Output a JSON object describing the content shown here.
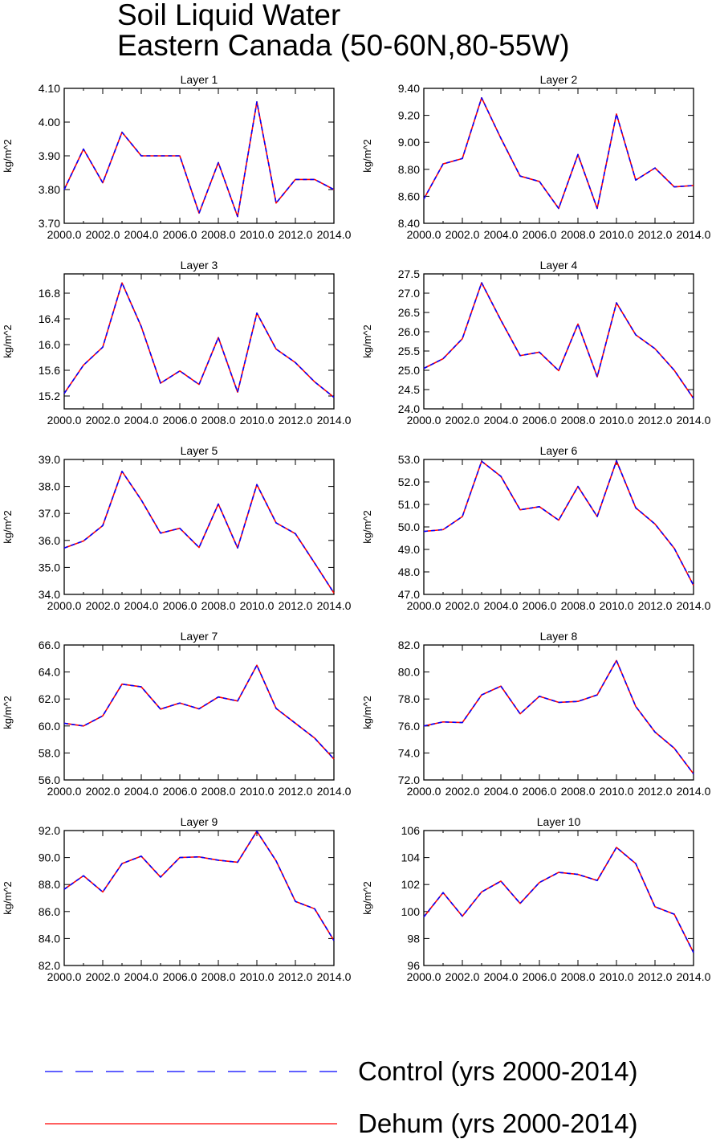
{
  "title": {
    "line1": "Soil Liquid Water",
    "line2": "Eastern Canada (50-60N,80-55W)"
  },
  "colors": {
    "control": "#0000ff",
    "dehum": "#ff0000",
    "axis": "#000000"
  },
  "legend": [
    {
      "label": "Control (yrs 2000-2014)",
      "style": "dashed",
      "color": "#0000ff"
    },
    {
      "label": "Dehum (yrs 2000-2014)",
      "style": "solid",
      "color": "#ff0000"
    }
  ],
  "chart_data": [
    {
      "type": "line",
      "title": "Layer 1",
      "ylabel": "kg/m^2",
      "xlabel": "",
      "x": [
        2000,
        2001,
        2002,
        2003,
        2004,
        2005,
        2006,
        2007,
        2008,
        2009,
        2010,
        2011,
        2012,
        2013,
        2014
      ],
      "xticks": [
        "2000.0",
        "2002.0",
        "2004.0",
        "2006.0",
        "2008.0",
        "2010.0",
        "2012.0",
        "2014.0"
      ],
      "ylim": [
        3.7,
        4.1
      ],
      "yticks": [
        "3.70",
        "3.80",
        "3.90",
        "4.00",
        "4.10"
      ],
      "series": [
        {
          "name": "Control (yrs 2000-2014)",
          "values": [
            3.8,
            3.92,
            3.82,
            3.97,
            3.9,
            3.9,
            3.9,
            3.73,
            3.88,
            3.72,
            4.06,
            3.76,
            3.83,
            3.83,
            3.8
          ]
        },
        {
          "name": "Dehum (yrs 2000-2014)",
          "values": [
            3.8,
            3.92,
            3.82,
            3.97,
            3.9,
            3.9,
            3.9,
            3.73,
            3.88,
            3.72,
            4.06,
            3.76,
            3.83,
            3.83,
            3.8
          ]
        }
      ]
    },
    {
      "type": "line",
      "title": "Layer 2",
      "ylabel": "kg/m^2",
      "xlabel": "",
      "x": [
        2000,
        2001,
        2002,
        2003,
        2004,
        2005,
        2006,
        2007,
        2008,
        2009,
        2010,
        2011,
        2012,
        2013,
        2014
      ],
      "xticks": [
        "2000.0",
        "2002.0",
        "2004.0",
        "2006.0",
        "2008.0",
        "2010.0",
        "2012.0",
        "2014.0"
      ],
      "ylim": [
        8.4,
        9.4
      ],
      "yticks": [
        "8.40",
        "8.60",
        "8.80",
        "9.00",
        "9.20",
        "9.40"
      ],
      "series": [
        {
          "name": "Control (yrs 2000-2014)",
          "values": [
            8.58,
            8.84,
            8.88,
            9.33,
            9.03,
            8.75,
            8.71,
            8.51,
            8.91,
            8.51,
            9.21,
            8.72,
            8.81,
            8.67,
            8.68
          ]
        },
        {
          "name": "Dehum (yrs 2000-2014)",
          "values": [
            8.58,
            8.84,
            8.88,
            9.33,
            9.03,
            8.75,
            8.71,
            8.51,
            8.91,
            8.51,
            9.21,
            8.72,
            8.81,
            8.67,
            8.68
          ]
        }
      ]
    },
    {
      "type": "line",
      "title": "Layer 3",
      "ylabel": "kg/m^2",
      "xlabel": "",
      "x": [
        2000,
        2001,
        2002,
        2003,
        2004,
        2005,
        2006,
        2007,
        2008,
        2009,
        2010,
        2011,
        2012,
        2013,
        2014
      ],
      "xticks": [
        "2000.0",
        "2002.0",
        "2004.0",
        "2006.0",
        "2008.0",
        "2010.0",
        "2012.0",
        "2014.0"
      ],
      "ylim": [
        15.0,
        17.1
      ],
      "yticks": [
        "15.2",
        "15.6",
        "16.0",
        "16.4",
        "16.8"
      ],
      "series": [
        {
          "name": "Control (yrs 2000-2014)",
          "values": [
            15.24,
            15.68,
            15.96,
            16.96,
            16.28,
            15.4,
            15.59,
            15.38,
            16.11,
            15.26,
            16.49,
            15.93,
            15.72,
            15.42,
            15.18
          ]
        },
        {
          "name": "Dehum (yrs 2000-2014)",
          "values": [
            15.24,
            15.68,
            15.96,
            16.96,
            16.28,
            15.4,
            15.59,
            15.38,
            16.11,
            15.26,
            16.49,
            15.93,
            15.72,
            15.42,
            15.18
          ]
        }
      ]
    },
    {
      "type": "line",
      "title": "Layer 4",
      "ylabel": "kg/m^2",
      "xlabel": "",
      "x": [
        2000,
        2001,
        2002,
        2003,
        2004,
        2005,
        2006,
        2007,
        2008,
        2009,
        2010,
        2011,
        2012,
        2013,
        2014
      ],
      "xticks": [
        "2000.0",
        "2002.0",
        "2004.0",
        "2006.0",
        "2008.0",
        "2010.0",
        "2012.0",
        "2014.0"
      ],
      "ylim": [
        24.0,
        27.5
      ],
      "yticks": [
        "24.0",
        "24.5",
        "25.0",
        "25.5",
        "26.0",
        "26.5",
        "27.0",
        "27.5"
      ],
      "series": [
        {
          "name": "Control (yrs 2000-2014)",
          "values": [
            25.05,
            25.3,
            25.82,
            27.27,
            26.3,
            25.38,
            25.47,
            24.99,
            26.2,
            24.83,
            26.75,
            25.92,
            25.56,
            25.0,
            24.27
          ]
        },
        {
          "name": "Dehum (yrs 2000-2014)",
          "values": [
            25.05,
            25.3,
            25.82,
            27.27,
            26.3,
            25.38,
            25.47,
            24.99,
            26.2,
            24.83,
            26.75,
            25.92,
            25.56,
            25.0,
            24.27
          ]
        }
      ]
    },
    {
      "type": "line",
      "title": "Layer 5",
      "ylabel": "kg/m^2",
      "xlabel": "",
      "x": [
        2000,
        2001,
        2002,
        2003,
        2004,
        2005,
        2006,
        2007,
        2008,
        2009,
        2010,
        2011,
        2012,
        2013,
        2014
      ],
      "xticks": [
        "2000.0",
        "2002.0",
        "2004.0",
        "2006.0",
        "2008.0",
        "2010.0",
        "2012.0",
        "2014.0"
      ],
      "ylim": [
        34.0,
        39.0
      ],
      "yticks": [
        "34.0",
        "35.0",
        "36.0",
        "37.0",
        "38.0",
        "39.0"
      ],
      "series": [
        {
          "name": "Control (yrs 2000-2014)",
          "values": [
            35.72,
            35.98,
            36.55,
            38.56,
            37.5,
            36.27,
            36.45,
            35.74,
            37.35,
            35.72,
            38.07,
            36.65,
            36.25,
            35.16,
            34.05
          ]
        },
        {
          "name": "Dehum (yrs 2000-2014)",
          "values": [
            35.72,
            35.98,
            36.55,
            38.56,
            37.5,
            36.27,
            36.45,
            35.74,
            37.35,
            35.72,
            38.07,
            36.65,
            36.25,
            35.16,
            34.05
          ]
        }
      ]
    },
    {
      "type": "line",
      "title": "Layer 6",
      "ylabel": "kg/m^2",
      "xlabel": "",
      "x": [
        2000,
        2001,
        2002,
        2003,
        2004,
        2005,
        2006,
        2007,
        2008,
        2009,
        2010,
        2011,
        2012,
        2013,
        2014
      ],
      "xticks": [
        "2000.0",
        "2002.0",
        "2004.0",
        "2006.0",
        "2008.0",
        "2010.0",
        "2012.0",
        "2014.0"
      ],
      "ylim": [
        47.0,
        53.0
      ],
      "yticks": [
        "47.0",
        "48.0",
        "49.0",
        "50.0",
        "51.0",
        "52.0",
        "53.0"
      ],
      "series": [
        {
          "name": "Control (yrs 2000-2014)",
          "values": [
            49.8,
            49.88,
            50.46,
            52.92,
            52.25,
            50.76,
            50.9,
            50.3,
            51.8,
            50.46,
            52.94,
            50.85,
            50.13,
            49.05,
            47.4
          ]
        },
        {
          "name": "Dehum (yrs 2000-2014)",
          "values": [
            49.8,
            49.88,
            50.46,
            52.92,
            52.25,
            50.76,
            50.9,
            50.3,
            51.8,
            50.46,
            52.94,
            50.85,
            50.13,
            49.05,
            47.4
          ]
        }
      ]
    },
    {
      "type": "line",
      "title": "Layer 7",
      "ylabel": "kg/m^2",
      "xlabel": "",
      "x": [
        2000,
        2001,
        2002,
        2003,
        2004,
        2005,
        2006,
        2007,
        2008,
        2009,
        2010,
        2011,
        2012,
        2013,
        2014
      ],
      "xticks": [
        "2000.0",
        "2002.0",
        "2004.0",
        "2006.0",
        "2008.0",
        "2010.0",
        "2012.0",
        "2014.0"
      ],
      "ylim": [
        56.0,
        66.0
      ],
      "yticks": [
        "56.0",
        "58.0",
        "60.0",
        "62.0",
        "64.0",
        "66.0"
      ],
      "series": [
        {
          "name": "Control (yrs 2000-2014)",
          "values": [
            60.2,
            60.0,
            60.75,
            63.1,
            62.9,
            61.25,
            61.7,
            61.27,
            62.15,
            61.85,
            64.5,
            61.3,
            60.2,
            59.1,
            57.55
          ]
        },
        {
          "name": "Dehum (yrs 2000-2014)",
          "values": [
            60.2,
            60.0,
            60.75,
            63.1,
            62.9,
            61.25,
            61.7,
            61.27,
            62.15,
            61.85,
            64.5,
            61.3,
            60.2,
            59.1,
            57.55
          ]
        }
      ]
    },
    {
      "type": "line",
      "title": "Layer 8",
      "ylabel": "kg/m^2",
      "xlabel": "",
      "x": [
        2000,
        2001,
        2002,
        2003,
        2004,
        2005,
        2006,
        2007,
        2008,
        2009,
        2010,
        2011,
        2012,
        2013,
        2014
      ],
      "xticks": [
        "2000.0",
        "2002.0",
        "2004.0",
        "2006.0",
        "2008.0",
        "2010.0",
        "2012.0",
        "2014.0"
      ],
      "ylim": [
        72.0,
        82.0
      ],
      "yticks": [
        "72.0",
        "74.0",
        "76.0",
        "78.0",
        "80.0",
        "82.0"
      ],
      "series": [
        {
          "name": "Control (yrs 2000-2014)",
          "values": [
            76.0,
            76.3,
            76.25,
            78.3,
            78.95,
            76.9,
            78.2,
            77.75,
            77.82,
            78.3,
            80.85,
            77.45,
            75.55,
            74.35,
            72.45
          ]
        },
        {
          "name": "Dehum (yrs 2000-2014)",
          "values": [
            76.0,
            76.3,
            76.25,
            78.3,
            78.95,
            76.9,
            78.2,
            77.75,
            77.82,
            78.3,
            80.85,
            77.45,
            75.55,
            74.35,
            72.45
          ]
        }
      ]
    },
    {
      "type": "line",
      "title": "Layer 9",
      "ylabel": "kg/m^2",
      "xlabel": "",
      "x": [
        2000,
        2001,
        2002,
        2003,
        2004,
        2005,
        2006,
        2007,
        2008,
        2009,
        2010,
        2011,
        2012,
        2013,
        2014
      ],
      "xticks": [
        "2000.0",
        "2002.0",
        "2004.0",
        "2006.0",
        "2008.0",
        "2010.0",
        "2012.0",
        "2014.0"
      ],
      "ylim": [
        82.0,
        92.0
      ],
      "yticks": [
        "82.0",
        "84.0",
        "86.0",
        "88.0",
        "90.0",
        "92.0"
      ],
      "series": [
        {
          "name": "Control (yrs 2000-2014)",
          "values": [
            87.65,
            88.65,
            87.45,
            89.55,
            90.1,
            88.55,
            90.0,
            90.05,
            89.8,
            89.65,
            91.95,
            89.75,
            86.75,
            86.2,
            83.85
          ]
        },
        {
          "name": "Dehum (yrs 2000-2014)",
          "values": [
            87.65,
            88.65,
            87.45,
            89.55,
            90.1,
            88.55,
            90.0,
            90.05,
            89.8,
            89.65,
            91.95,
            89.75,
            86.75,
            86.2,
            83.85
          ]
        }
      ]
    },
    {
      "type": "line",
      "title": "Layer 10",
      "ylabel": "kg/m^2",
      "xlabel": "",
      "x": [
        2000,
        2001,
        2002,
        2003,
        2004,
        2005,
        2006,
        2007,
        2008,
        2009,
        2010,
        2011,
        2012,
        2013,
        2014
      ],
      "xticks": [
        "2000.0",
        "2002.0",
        "2004.0",
        "2006.0",
        "2008.0",
        "2010.0",
        "2012.0",
        "2014.0"
      ],
      "ylim": [
        96.0,
        106.0
      ],
      "yticks": [
        "96",
        "98",
        "100",
        "102",
        "104",
        "106"
      ],
      "series": [
        {
          "name": "Control (yrs 2000-2014)",
          "values": [
            99.6,
            101.4,
            99.65,
            101.45,
            102.25,
            100.6,
            102.15,
            102.9,
            102.75,
            102.3,
            104.75,
            103.55,
            100.35,
            99.8,
            96.95
          ]
        },
        {
          "name": "Dehum (yrs 2000-2014)",
          "values": [
            99.6,
            101.4,
            99.65,
            101.45,
            102.25,
            100.6,
            102.15,
            102.9,
            102.75,
            102.3,
            104.75,
            103.55,
            100.35,
            99.8,
            96.95
          ]
        }
      ]
    }
  ]
}
